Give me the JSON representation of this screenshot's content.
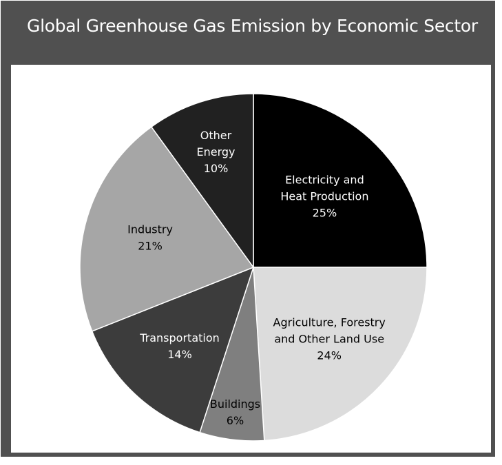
{
  "title": "Global Greenhouse Gas Emission by Economic Sector",
  "colors": {
    "frame": "#505050",
    "title_text": "#ffffff",
    "slice_border": "#ffffff"
  },
  "chart_data": {
    "type": "pie",
    "title": "Global Greenhouse Gas Emission by Economic Sector",
    "start_angle_deg": 0,
    "direction": "clockwise",
    "slices": [
      {
        "label": [
          "Electricity and",
          "Heat Production"
        ],
        "value": 25,
        "value_label": "25%",
        "color": "#000000",
        "text_color": "#ffffff"
      },
      {
        "label": [
          "Agriculture, Forestry",
          "and Other Land Use"
        ],
        "value": 24,
        "value_label": "24%",
        "color": "#dcdcdc",
        "text_color": "#000000"
      },
      {
        "label": [
          "Buildings"
        ],
        "value": 6,
        "value_label": "6%",
        "color": "#7f7f7f",
        "text_color": "#000000"
      },
      {
        "label": [
          "Transportation"
        ],
        "value": 14,
        "value_label": "14%",
        "color": "#3c3c3c",
        "text_color": "#ffffff"
      },
      {
        "label": [
          "Industry"
        ],
        "value": 21,
        "value_label": "21%",
        "color": "#a6a6a6",
        "text_color": "#000000"
      },
      {
        "label": [
          "Other",
          "Energy"
        ],
        "value": 10,
        "value_label": "10%",
        "color": "#212121",
        "text_color": "#ffffff"
      }
    ]
  }
}
